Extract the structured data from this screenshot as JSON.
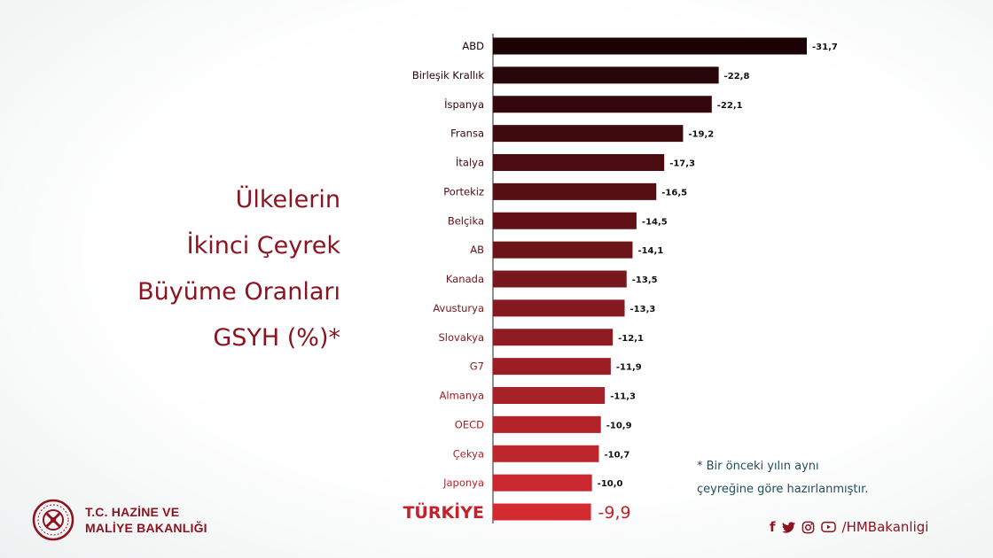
{
  "title_lines": [
    "Ülkelerin",
    "İkinci Çeyrek",
    "Büyüme Oranları",
    "GSYH (%)*"
  ],
  "chart_data": {
    "type": "bar",
    "orientation": "horizontal",
    "categories": [
      "ABD",
      "Birleşik Krallık",
      "İspanya",
      "Fransa",
      "İtalya",
      "Portekiz",
      "Belçika",
      "AB",
      "Kanada",
      "Avusturya",
      "Slovakya",
      "G7",
      "Almanya",
      "OECD",
      "Çekya",
      "Japonya",
      "TÜRKİYE"
    ],
    "values": [
      -31.7,
      -22.8,
      -22.1,
      -19.2,
      -17.3,
      -16.5,
      -14.5,
      -14.1,
      -13.5,
      -13.3,
      -12.1,
      -11.9,
      -11.3,
      -10.9,
      -10.7,
      -10.0,
      -9.9
    ],
    "value_labels": [
      "-31,7",
      "-22,8",
      "-22,1",
      "-19,2",
      "-17,3",
      "-16,5",
      "-14,5",
      "-14,1",
      "-13,5",
      "-13,3",
      "-12,1",
      "-11,9",
      "-11,3",
      "-10,9",
      "-10,7",
      "-10,0",
      "-9,9"
    ],
    "highlight": "TÜRKİYE",
    "color_start": "#1c0205",
    "color_end": "#d42b33",
    "grid": false,
    "legend": "none"
  },
  "footnote": [
    "* Bir önceki yılın aynı",
    "çeyreğine göre hazırlanmıştır."
  ],
  "logo": {
    "line1": "T.C. HAZİNE VE",
    "line2": "MALİYE BAKANLIĞI"
  },
  "social": {
    "icons": [
      "facebook-icon",
      "twitter-icon",
      "instagram-icon",
      "youtube-icon"
    ],
    "handle": "/HMBakanligi"
  }
}
